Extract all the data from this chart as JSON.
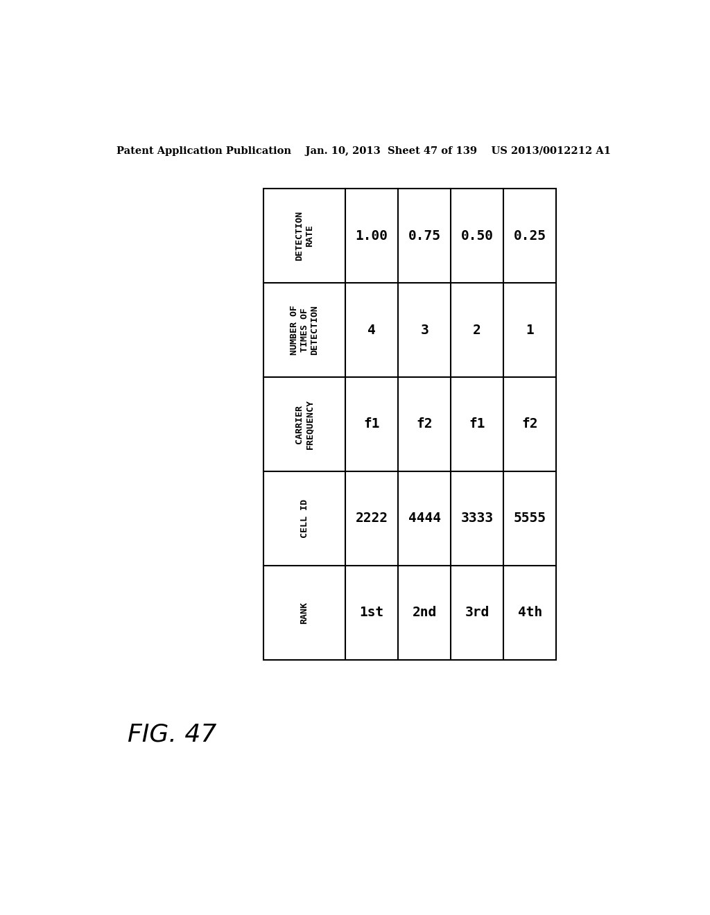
{
  "header_text": "Patent Application Publication    Jan. 10, 2013  Sheet 47 of 139    US 2013/0012212 A1",
  "figure_label": "FIG. 47",
  "col_headers": [
    "DETECTION\nRATE",
    "NUMBER OF\nTIMES OF\nDETECTION",
    "CARRIER\nFREQUENCY",
    "CELL ID",
    "RANK"
  ],
  "data_cols": [
    [
      "1.00",
      "0.75",
      "0.50",
      "0.25"
    ],
    [
      "4",
      "3",
      "2",
      "1"
    ],
    [
      "f1",
      "f2",
      "f1",
      "f2"
    ],
    [
      "2222",
      "4444",
      "3333",
      "5555"
    ],
    [
      "1st",
      "2nd",
      "3rd",
      "4th"
    ]
  ],
  "bg_color": "#ffffff",
  "text_color": "#000000",
  "line_color": "#000000",
  "header_font_size": 9.5,
  "data_font_size": 14
}
